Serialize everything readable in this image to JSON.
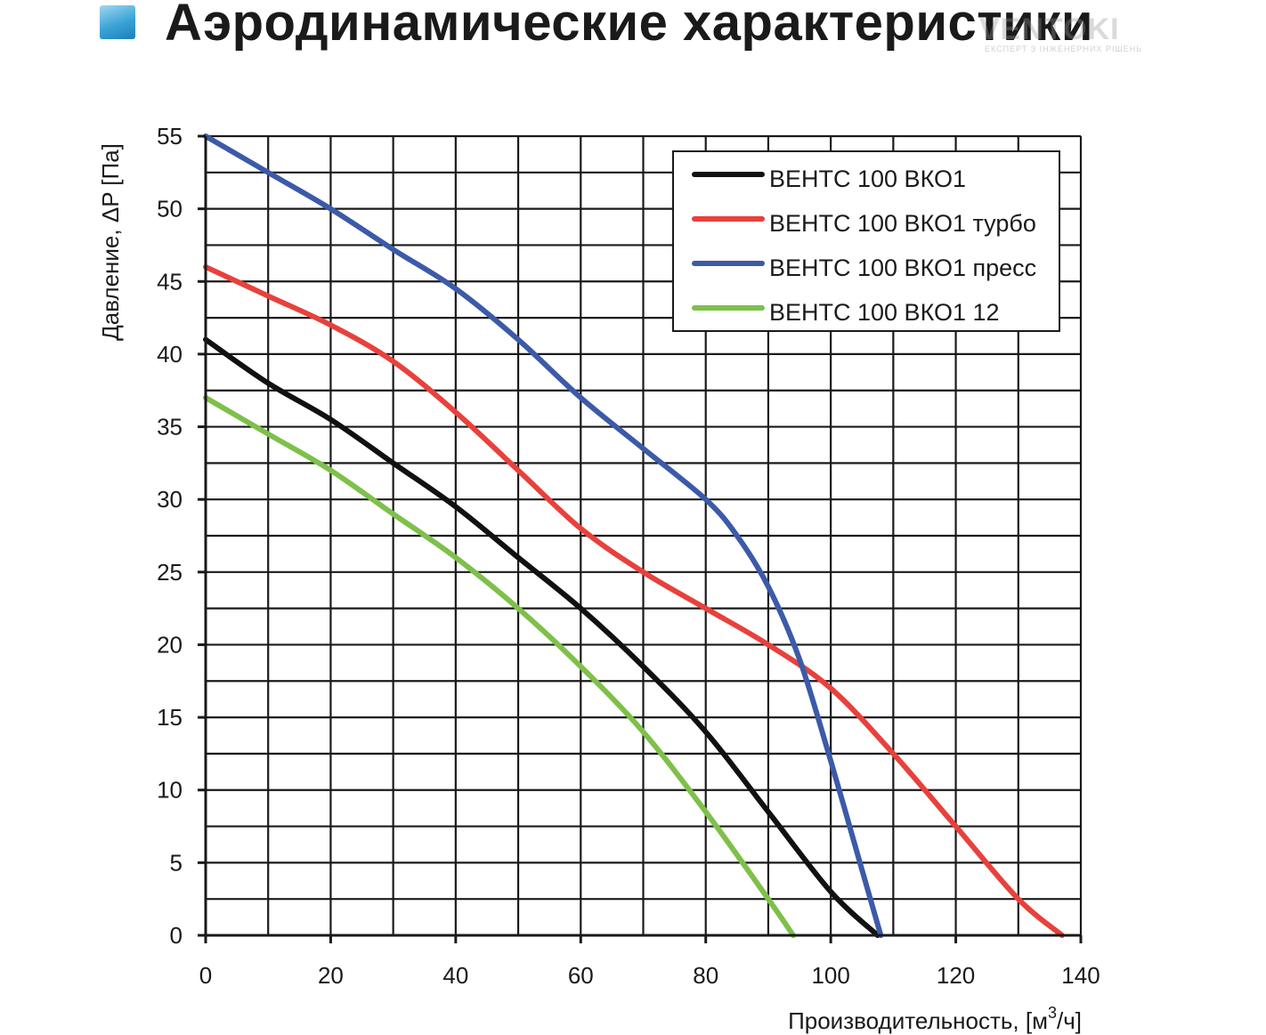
{
  "header": {
    "title": "Аэродинамические характеристики",
    "watermark": "VENTOKI",
    "watermark_sub": "ЕКСПЕРТ З ІНЖЕНЕРНИХ РІШЕНЬ"
  },
  "chart_data": {
    "type": "line",
    "xlabel": "Производительность, [м",
    "xlabel_sup": "3",
    "xlabel_tail": "/ч]",
    "ylabel": "Давление, ΔP [Па]",
    "xlim": [
      0,
      140
    ],
    "ylim": [
      0,
      55
    ],
    "x_ticks": [
      "0",
      "20",
      "40",
      "60",
      "80",
      "100",
      "120",
      "140"
    ],
    "y_ticks": [
      "0",
      "5",
      "10",
      "15",
      "20",
      "25",
      "30",
      "35",
      "40",
      "45",
      "50",
      "55"
    ],
    "grid": true,
    "legend_position": "top-right",
    "series": [
      {
        "name": "ВЕНТС 100 ВКО1",
        "color": "#111111",
        "points": [
          [
            0,
            41
          ],
          [
            10,
            38
          ],
          [
            20,
            35.5
          ],
          [
            30,
            32.5
          ],
          [
            40,
            29.5
          ],
          [
            50,
            26
          ],
          [
            60,
            22.5
          ],
          [
            70,
            18.5
          ],
          [
            80,
            14
          ],
          [
            90,
            8.5
          ],
          [
            100,
            3
          ],
          [
            107.5,
            0
          ]
        ]
      },
      {
        "name": "ВЕНТС 100 ВКО1 турбо",
        "color": "#e8413c",
        "points": [
          [
            0,
            46
          ],
          [
            10,
            44
          ],
          [
            20,
            42
          ],
          [
            30,
            39.5
          ],
          [
            40,
            36
          ],
          [
            50,
            32
          ],
          [
            60,
            28
          ],
          [
            70,
            25
          ],
          [
            80,
            22.5
          ],
          [
            90,
            20
          ],
          [
            100,
            17
          ],
          [
            110,
            12.5
          ],
          [
            120,
            7.5
          ],
          [
            130,
            2.5
          ],
          [
            137,
            0
          ]
        ]
      },
      {
        "name": "ВЕНТС 100 ВКО1 пресс",
        "color": "#3c5aa8",
        "points": [
          [
            0,
            55
          ],
          [
            10,
            52.5
          ],
          [
            20,
            50
          ],
          [
            30,
            47.2
          ],
          [
            40,
            44.5
          ],
          [
            50,
            41
          ],
          [
            60,
            37
          ],
          [
            70,
            33.5
          ],
          [
            80,
            30
          ],
          [
            85,
            27.5
          ],
          [
            90,
            24
          ],
          [
            95,
            19
          ],
          [
            100,
            12
          ],
          [
            105,
            4.5
          ],
          [
            108,
            0
          ]
        ]
      },
      {
        "name": "ВЕНТС 100 ВКО1 12",
        "color": "#7ec04a",
        "points": [
          [
            0,
            37
          ],
          [
            10,
            34.5
          ],
          [
            20,
            32
          ],
          [
            30,
            29
          ],
          [
            40,
            26
          ],
          [
            50,
            22.5
          ],
          [
            60,
            18.5
          ],
          [
            70,
            14
          ],
          [
            80,
            8.5
          ],
          [
            90,
            2.5
          ],
          [
            94,
            0
          ]
        ]
      }
    ]
  }
}
